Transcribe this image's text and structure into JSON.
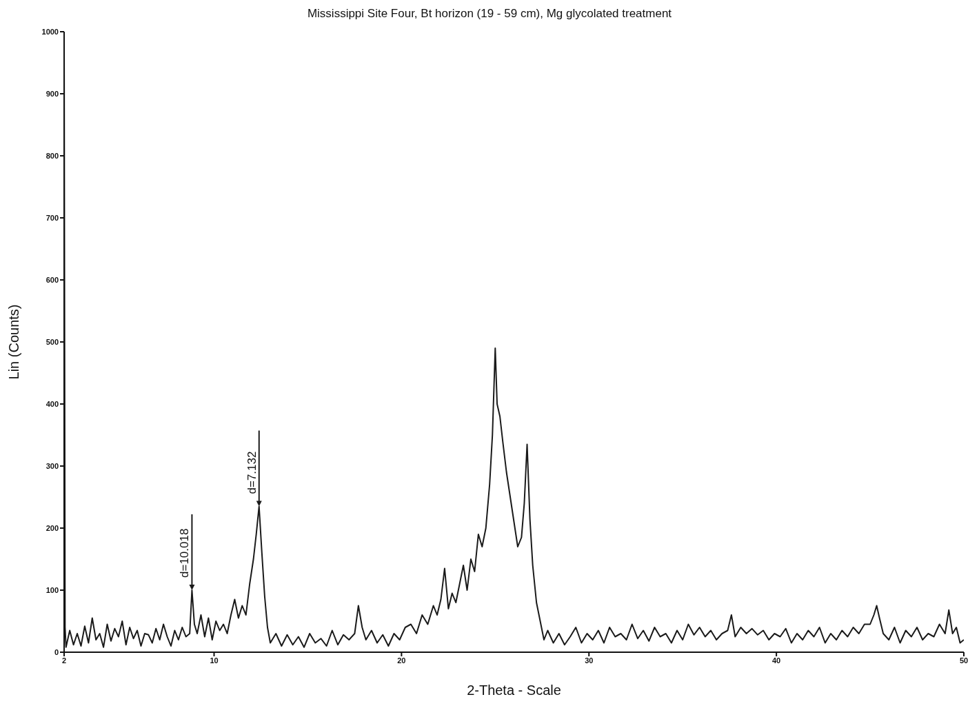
{
  "chart_data": {
    "type": "line",
    "title": "Mississippi Site Four, Bt horizon (19 - 59 cm), Mg glycolated treatment",
    "xlabel": "2-Theta - Scale",
    "ylabel": "Lin (Counts)",
    "xlim": [
      2,
      50
    ],
    "xticks": [
      2,
      10,
      20,
      30,
      40,
      50
    ],
    "ylim": [
      0,
      1000
    ],
    "yticks": [
      0,
      100,
      200,
      300,
      400,
      500,
      600,
      700,
      800,
      900,
      1000
    ],
    "annotations": [
      {
        "text": "d=10.018",
        "x": 8.82,
        "y": 100
      },
      {
        "text": "d=7.132",
        "x": 12.4,
        "y": 235
      }
    ],
    "series": [
      {
        "color": "#1a1a1a",
        "x": [
          2.0,
          2.05,
          2.1,
          2.3,
          2.5,
          2.7,
          2.9,
          3.1,
          3.3,
          3.5,
          3.7,
          3.9,
          4.1,
          4.3,
          4.5,
          4.7,
          4.9,
          5.1,
          5.3,
          5.5,
          5.7,
          5.9,
          6.1,
          6.3,
          6.5,
          6.7,
          6.9,
          7.1,
          7.3,
          7.5,
          7.7,
          7.9,
          8.1,
          8.3,
          8.5,
          8.7,
          8.82,
          8.95,
          9.1,
          9.3,
          9.5,
          9.7,
          9.9,
          10.1,
          10.3,
          10.5,
          10.7,
          10.9,
          11.1,
          11.3,
          11.5,
          11.7,
          11.9,
          12.1,
          12.25,
          12.4,
          12.55,
          12.7,
          12.85,
          13.0,
          13.3,
          13.6,
          13.9,
          14.2,
          14.5,
          14.8,
          15.1,
          15.4,
          15.7,
          16.0,
          16.3,
          16.6,
          16.9,
          17.2,
          17.5,
          17.7,
          17.9,
          18.1,
          18.4,
          18.7,
          19.0,
          19.3,
          19.6,
          19.9,
          20.2,
          20.5,
          20.8,
          21.1,
          21.4,
          21.7,
          21.9,
          22.1,
          22.3,
          22.5,
          22.7,
          22.9,
          23.1,
          23.3,
          23.5,
          23.7,
          23.9,
          24.1,
          24.3,
          24.5,
          24.7,
          24.85,
          25.0,
          25.1,
          25.25,
          25.4,
          25.6,
          25.8,
          26.0,
          26.2,
          26.4,
          26.55,
          26.7,
          26.85,
          27.0,
          27.2,
          27.4,
          27.6,
          27.8,
          28.1,
          28.4,
          28.7,
          29.0,
          29.3,
          29.6,
          29.9,
          30.2,
          30.5,
          30.8,
          31.1,
          31.4,
          31.7,
          32.0,
          32.3,
          32.6,
          32.9,
          33.2,
          33.5,
          33.8,
          34.1,
          34.4,
          34.7,
          35.0,
          35.3,
          35.6,
          35.9,
          36.2,
          36.5,
          36.8,
          37.1,
          37.4,
          37.6,
          37.8,
          38.1,
          38.4,
          38.7,
          39.0,
          39.3,
          39.6,
          39.9,
          40.2,
          40.5,
          40.8,
          41.1,
          41.4,
          41.7,
          42.0,
          42.3,
          42.6,
          42.9,
          43.2,
          43.5,
          43.8,
          44.1,
          44.4,
          44.7,
          45.0,
          45.2,
          45.35,
          45.5,
          45.7,
          46.0,
          46.3,
          46.6,
          46.9,
          47.2,
          47.5,
          47.8,
          48.1,
          48.4,
          48.7,
          49.0,
          49.2,
          49.4,
          49.6,
          49.8,
          50.0
        ],
        "values": [
          1000,
          40,
          8,
          35,
          12,
          30,
          10,
          42,
          15,
          55,
          20,
          30,
          8,
          45,
          18,
          38,
          25,
          50,
          12,
          40,
          22,
          35,
          10,
          30,
          28,
          15,
          38,
          20,
          45,
          25,
          10,
          35,
          20,
          40,
          25,
          30,
          100,
          45,
          30,
          60,
          25,
          55,
          20,
          50,
          35,
          45,
          30,
          60,
          85,
          55,
          75,
          60,
          110,
          150,
          190,
          235,
          160,
          90,
          40,
          15,
          30,
          10,
          28,
          12,
          25,
          8,
          30,
          15,
          22,
          10,
          35,
          12,
          28,
          20,
          30,
          75,
          40,
          20,
          35,
          15,
          28,
          10,
          30,
          20,
          40,
          45,
          30,
          60,
          45,
          75,
          60,
          85,
          135,
          70,
          95,
          80,
          110,
          140,
          100,
          150,
          130,
          190,
          170,
          200,
          270,
          350,
          490,
          400,
          380,
          340,
          290,
          250,
          210,
          170,
          185,
          240,
          335,
          215,
          140,
          80,
          50,
          20,
          35,
          15,
          30,
          12,
          25,
          40,
          15,
          30,
          20,
          35,
          15,
          40,
          25,
          30,
          20,
          45,
          22,
          35,
          18,
          40,
          25,
          30,
          15,
          35,
          20,
          45,
          28,
          40,
          25,
          35,
          20,
          30,
          35,
          60,
          25,
          40,
          30,
          38,
          28,
          35,
          20,
          30,
          25,
          38,
          15,
          30,
          20,
          35,
          25,
          40,
          15,
          30,
          20,
          35,
          25,
          40,
          30,
          45,
          45,
          60,
          75,
          55,
          30,
          20,
          40,
          15,
          35,
          25,
          40,
          20,
          30,
          25,
          45,
          30,
          68,
          30,
          40,
          15,
          20
        ]
      }
    ]
  }
}
